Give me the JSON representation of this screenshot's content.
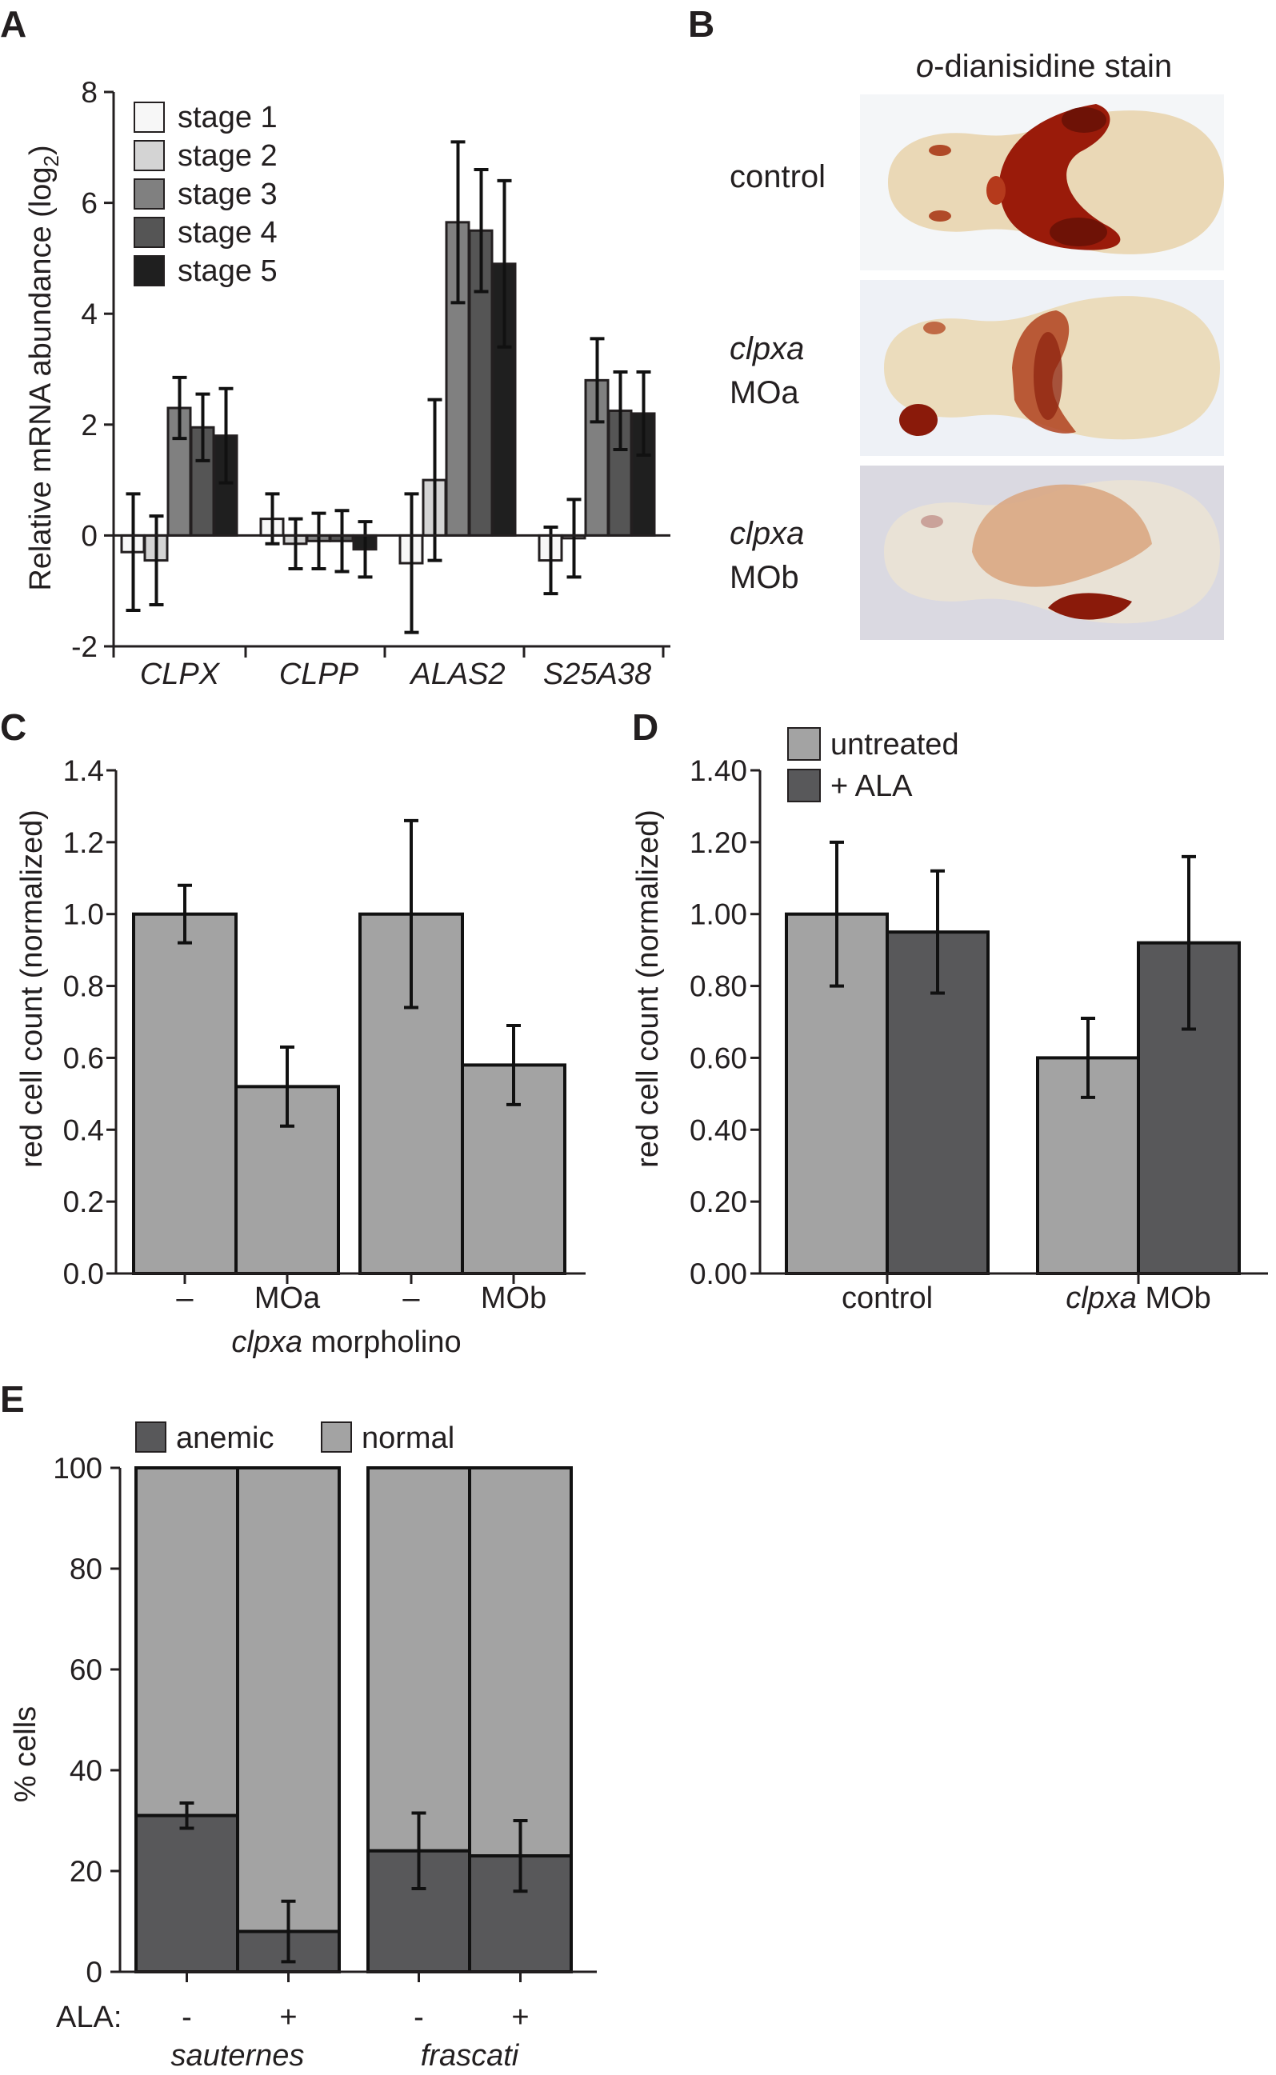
{
  "panels": {
    "a": "A",
    "b": "B",
    "c": "C",
    "d": "D",
    "e": "E"
  },
  "colors": {
    "stage1": "#f7f7f7",
    "stage2": "#d4d4d4",
    "stage3": "#808080",
    "stage4": "#555555",
    "stage5": "#1f1f1f",
    "light_bar": "#a3a3a3",
    "dark_bar": "#58585a",
    "stain": "#9a1b0a",
    "embryo": "#e9d9ba"
  },
  "panel_b": {
    "title_prefix": "o",
    "title_rest": "-dianisidine stain",
    "rows": [
      {
        "line1": "control",
        "line1_italic": false,
        "line2": ""
      },
      {
        "line1": "clpxa",
        "line1_italic": true,
        "line2": "MOa"
      },
      {
        "line1": "clpxa",
        "line1_italic": true,
        "line2": "MOb"
      }
    ]
  },
  "chart_data": [
    {
      "id": "A",
      "type": "bar",
      "ylabel": "Relative mRNA abundance (log",
      "ylabel_sub": "2",
      "ylabel_close": ")",
      "ylim": [
        -2,
        8
      ],
      "yticks": [
        "-2",
        "0",
        "2",
        "4",
        "6",
        "8"
      ],
      "categories": [
        "CLPX",
        "CLPP",
        "ALAS2",
        "S25A38"
      ],
      "legend_position": "top-left",
      "series": [
        {
          "name": "stage 1",
          "values": [
            -0.3,
            0.3,
            -0.5,
            -0.45
          ],
          "errors": [
            1.05,
            0.45,
            1.25,
            0.6
          ]
        },
        {
          "name": "stage 2",
          "values": [
            -0.45,
            -0.15,
            1.0,
            -0.05
          ],
          "errors": [
            0.8,
            0.45,
            1.45,
            0.7
          ]
        },
        {
          "name": "stage 3",
          "values": [
            2.3,
            -0.1,
            5.65,
            2.8
          ],
          "errors": [
            0.55,
            0.5,
            1.45,
            0.75
          ]
        },
        {
          "name": "stage 4",
          "values": [
            1.95,
            -0.1,
            5.5,
            2.25
          ],
          "errors": [
            0.6,
            0.55,
            1.1,
            0.7
          ]
        },
        {
          "name": "stage 5",
          "values": [
            1.8,
            -0.25,
            4.9,
            2.2
          ],
          "errors": [
            0.85,
            0.5,
            1.5,
            0.75
          ]
        }
      ]
    },
    {
      "id": "C",
      "type": "bar",
      "ylabel": "red cell count (normalized)",
      "xlabel_italic": "clpxa",
      "xlabel_rest": " morpholino",
      "ylim": [
        0,
        1.4
      ],
      "yticks": [
        "0.0",
        "0.2",
        "0.4",
        "0.6",
        "0.8",
        "1.0",
        "1.2",
        "1.4"
      ],
      "categories": [
        "–",
        "MOa",
        "–",
        "MOb"
      ],
      "values": [
        1.0,
        0.52,
        1.0,
        0.58
      ],
      "errors": [
        0.08,
        0.11,
        0.26,
        0.11
      ]
    },
    {
      "id": "D",
      "type": "bar",
      "ylabel": "red cell count (normalized)",
      "ylim": [
        0,
        1.4
      ],
      "yticks": [
        "0.00",
        "0.20",
        "0.40",
        "0.60",
        "0.80",
        "1.00",
        "1.20",
        "1.40"
      ],
      "categories": [
        "control",
        "clpxa MOb"
      ],
      "category_parts": [
        {
          "italic": "",
          "rest": "control"
        },
        {
          "italic": "clpxa",
          "rest": " MOb"
        }
      ],
      "legend_position": "top-left",
      "series": [
        {
          "name": "untreated",
          "values": [
            1.0,
            0.6
          ],
          "errors": [
            0.2,
            0.11
          ]
        },
        {
          "name": "+ ALA",
          "values": [
            0.95,
            0.92
          ],
          "errors": [
            0.17,
            0.24
          ]
        }
      ]
    },
    {
      "id": "E",
      "type": "bar",
      "stacked": true,
      "ylabel": "% cells",
      "ylim": [
        0,
        100
      ],
      "yticks": [
        "0",
        "20",
        "40",
        "60",
        "80",
        "100"
      ],
      "row_label": "ALA:",
      "ala": [
        "-",
        "+",
        "-",
        "+"
      ],
      "groups": [
        "sauternes",
        "frascati"
      ],
      "legend_position": "top-left",
      "series": [
        {
          "name": "anemic",
          "values": [
            31,
            8,
            24,
            23
          ],
          "errors": [
            2.5,
            6,
            7.5,
            7
          ]
        },
        {
          "name": "normal",
          "values": [
            69,
            92,
            76,
            77
          ]
        }
      ]
    }
  ]
}
